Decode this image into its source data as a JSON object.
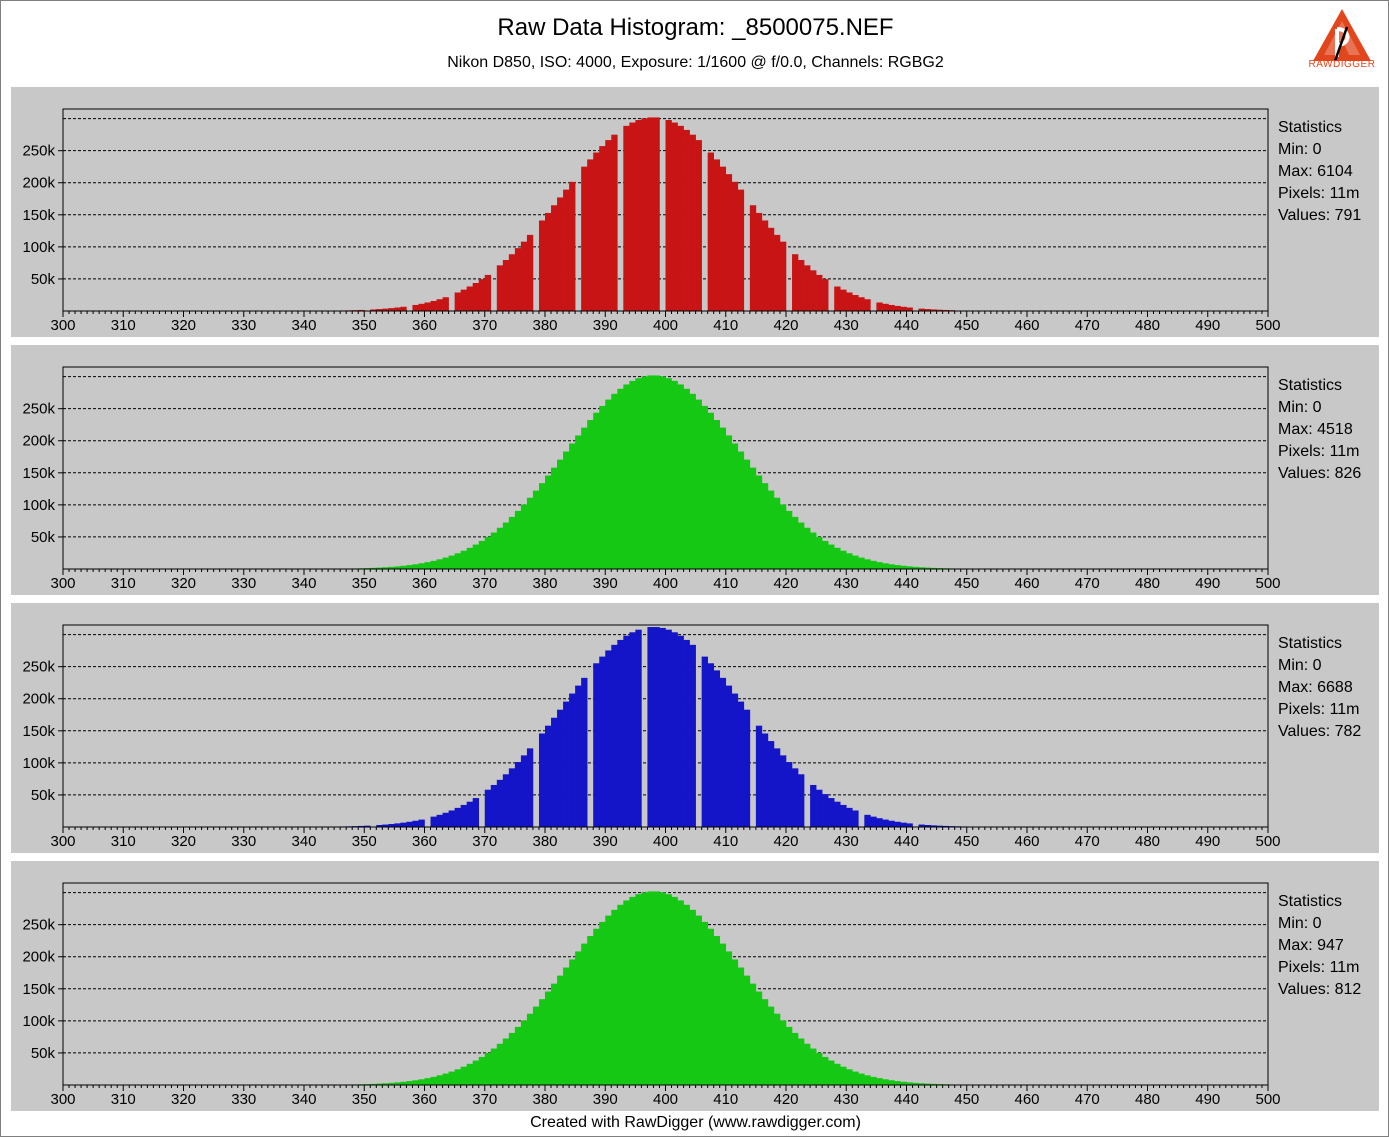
{
  "title": "Raw Data Histogram: _8500075.NEF",
  "subtitle": "Nikon D850, ISO: 4000, Exposure: 1/1600 @ f/0.0, Channels: RGBG2",
  "logo": {
    "text": "RAWDIGGER",
    "accent": "#e2461d"
  },
  "footer": "Created with RawDigger (www.rawdigger.com)",
  "chart_data": [
    {
      "type": "bar",
      "channel": "R",
      "color": "#c81414",
      "xlim": [
        300,
        500
      ],
      "ylim": [
        0,
        315000
      ],
      "x_ticks": [
        300,
        310,
        320,
        330,
        340,
        350,
        360,
        370,
        380,
        390,
        400,
        410,
        420,
        430,
        440,
        450,
        460,
        470,
        480,
        490,
        500
      ],
      "y_ticks": [
        50000,
        100000,
        150000,
        200000,
        250000
      ],
      "y_tick_labels": [
        "50k",
        "100k",
        "150k",
        "200k",
        "250k"
      ],
      "distribution": {
        "mean": 398,
        "sd": 15,
        "peak": 302000,
        "missing_codes_every": 7
      },
      "stats": {
        "heading": "Statistics",
        "min": "Min: 0",
        "max": "Max: 6104",
        "pixels": "Pixels: 11m",
        "values": "Values: 791"
      }
    },
    {
      "type": "bar",
      "channel": "G",
      "color": "#14c814",
      "xlim": [
        300,
        500
      ],
      "ylim": [
        0,
        315000
      ],
      "x_ticks": [
        300,
        310,
        320,
        330,
        340,
        350,
        360,
        370,
        380,
        390,
        400,
        410,
        420,
        430,
        440,
        450,
        460,
        470,
        480,
        490,
        500
      ],
      "y_ticks": [
        50000,
        100000,
        150000,
        200000,
        250000
      ],
      "y_tick_labels": [
        "50k",
        "100k",
        "150k",
        "200k",
        "250k"
      ],
      "distribution": {
        "mean": 398,
        "sd": 14.5,
        "peak": 302000,
        "missing_codes_every": 0
      },
      "stats": {
        "heading": "Statistics",
        "min": "Min: 0",
        "max": "Max: 4518",
        "pixels": "Pixels: 11m",
        "values": "Values: 826"
      }
    },
    {
      "type": "bar",
      "channel": "B",
      "color": "#1414c8",
      "xlim": [
        300,
        500
      ],
      "ylim": [
        0,
        315000
      ],
      "x_ticks": [
        300,
        310,
        320,
        330,
        340,
        350,
        360,
        370,
        380,
        390,
        400,
        410,
        420,
        430,
        440,
        450,
        460,
        470,
        480,
        490,
        500
      ],
      "y_ticks": [
        50000,
        100000,
        150000,
        200000,
        250000
      ],
      "y_tick_labels": [
        "50k",
        "100k",
        "150k",
        "200k",
        "250k"
      ],
      "distribution": {
        "mean": 398,
        "sd": 15,
        "peak": 312000,
        "missing_codes_every": 9
      },
      "stats": {
        "heading": "Statistics",
        "min": "Min: 0",
        "max": "Max: 6688",
        "pixels": "Pixels: 11m",
        "values": "Values: 782"
      }
    },
    {
      "type": "bar",
      "channel": "G2",
      "color": "#14c814",
      "xlim": [
        300,
        500
      ],
      "ylim": [
        0,
        315000
      ],
      "x_ticks": [
        300,
        310,
        320,
        330,
        340,
        350,
        360,
        370,
        380,
        390,
        400,
        410,
        420,
        430,
        440,
        450,
        460,
        470,
        480,
        490,
        500
      ],
      "y_ticks": [
        50000,
        100000,
        150000,
        200000,
        250000
      ],
      "y_tick_labels": [
        "50k",
        "100k",
        "150k",
        "200k",
        "250k"
      ],
      "distribution": {
        "mean": 398,
        "sd": 14.5,
        "peak": 302000,
        "missing_codes_every": 0
      },
      "stats": {
        "heading": "Statistics",
        "min": "Min: 0",
        "max": "Max: 947",
        "pixels": "Pixels: 11m",
        "values": "Values: 812"
      }
    }
  ]
}
